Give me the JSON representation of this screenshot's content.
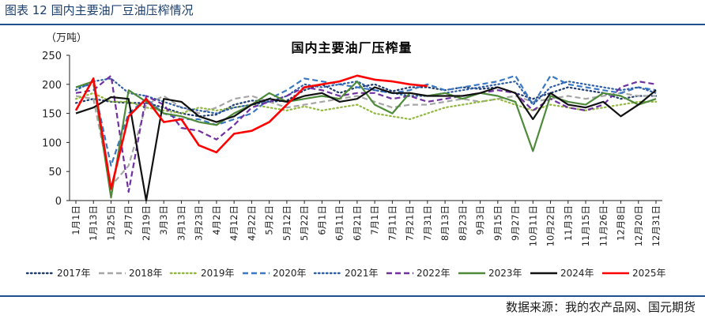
{
  "figure": {
    "caption": "图表 12  国内主要油厂豆油压榨情况",
    "source": "数据来源：我的农产品网、国元期货"
  },
  "chart_data": {
    "type": "line",
    "title": "国内主要油厂压榨量",
    "ylabel": "（万吨）",
    "ylim": [
      0,
      250
    ],
    "yticks": [
      0,
      50,
      100,
      150,
      200,
      250
    ],
    "grid": false,
    "legend_position": "bottom",
    "x": [
      "1月1日",
      "1月13日",
      "1月25日",
      "2月7日",
      "2月19日",
      "3月3日",
      "3月13日",
      "3月23日",
      "4月2日",
      "4月12日",
      "4月22日",
      "5月2日",
      "5月12日",
      "5月22日",
      "6月1日",
      "6月11日",
      "6月21日",
      "7月1日",
      "7月11日",
      "7月21日",
      "7月31日",
      "8月13日",
      "8月23日",
      "9月3日",
      "9月15日",
      "9月27日",
      "10月11日",
      "10月22日",
      "11月3日",
      "11月15日",
      "11月26日",
      "12月8日",
      "12月20日",
      "12月31日"
    ],
    "series": [
      {
        "name": "2017年",
        "color": "#1f3c6e",
        "dash": "dot",
        "values": [
          168,
          175,
          170,
          168,
          168,
          160,
          150,
          145,
          148,
          165,
          172,
          170,
          172,
          190,
          200,
          185,
          195,
          200,
          188,
          195,
          195,
          190,
          195,
          192,
          195,
          185,
          175,
          185,
          195,
          190,
          185,
          175,
          180,
          180
        ]
      },
      {
        "name": "2018年",
        "color": "#a6a6a6",
        "dash": "dash",
        "values": [
          180,
          175,
          25,
          60,
          165,
          180,
          160,
          150,
          160,
          175,
          180,
          170,
          160,
          165,
          170,
          175,
          180,
          170,
          160,
          165,
          165,
          170,
          175,
          170,
          175,
          180,
          170,
          175,
          180,
          175,
          180,
          185,
          180,
          180
        ]
      },
      {
        "name": "2019年",
        "color": "#92b83f",
        "dash": "dot",
        "values": [
          175,
          185,
          170,
          170,
          160,
          155,
          150,
          160,
          155,
          160,
          165,
          160,
          155,
          162,
          155,
          160,
          165,
          150,
          145,
          140,
          150,
          160,
          165,
          170,
          175,
          165,
          155,
          165,
          160,
          155,
          160,
          165,
          170,
          170
        ]
      },
      {
        "name": "2020年",
        "color": "#3a78c3",
        "dash": "dash",
        "values": [
          195,
          200,
          60,
          150,
          175,
          150,
          140,
          140,
          130,
          140,
          150,
          175,
          190,
          210,
          205,
          200,
          195,
          190,
          185,
          190,
          200,
          190,
          195,
          200,
          205,
          215,
          165,
          215,
          200,
          195,
          190,
          185,
          195,
          190
        ]
      },
      {
        "name": "2021年",
        "color": "#2f5fa8",
        "dash": "dot",
        "values": [
          190,
          205,
          210,
          185,
          180,
          170,
          160,
          155,
          150,
          160,
          165,
          170,
          180,
          200,
          195,
          200,
          205,
          190,
          185,
          180,
          180,
          185,
          190,
          195,
          200,
          205,
          165,
          195,
          205,
          200,
          195,
          190,
          195,
          185
        ]
      },
      {
        "name": "2022年",
        "color": "#7030a0",
        "dash": "dash",
        "values": [
          185,
          190,
          215,
          15,
          180,
          165,
          125,
          120,
          105,
          130,
          160,
          170,
          180,
          195,
          190,
          180,
          185,
          185,
          175,
          180,
          170,
          175,
          180,
          185,
          190,
          185,
          155,
          175,
          160,
          155,
          165,
          195,
          205,
          200
        ]
      },
      {
        "name": "2023年",
        "color": "#4e8a3a",
        "dash": "solid",
        "values": [
          195,
          205,
          5,
          190,
          170,
          150,
          145,
          135,
          130,
          150,
          165,
          185,
          170,
          175,
          180,
          175,
          205,
          165,
          150,
          185,
          180,
          185,
          175,
          185,
          180,
          170,
          85,
          180,
          170,
          165,
          185,
          180,
          165,
          175
        ]
      },
      {
        "name": "2024年",
        "color": "#111111",
        "dash": "solid",
        "values": [
          150,
          160,
          178,
          175,
          0,
          175,
          170,
          145,
          135,
          145,
          165,
          175,
          170,
          180,
          185,
          170,
          175,
          195,
          185,
          185,
          180,
          180,
          180,
          185,
          195,
          185,
          140,
          185,
          165,
          160,
          170,
          145,
          165,
          190
        ]
      },
      {
        "name": "2025年",
        "color": "#ff0000",
        "dash": "solid",
        "values": [
          155,
          210,
          20,
          145,
          175,
          135,
          140,
          95,
          83,
          115,
          120,
          135,
          165,
          195,
          200,
          205,
          215,
          208,
          205,
          200,
          197,
          null,
          null,
          null,
          null,
          null,
          null,
          null,
          null,
          null,
          null,
          null,
          null,
          null
        ]
      }
    ]
  }
}
